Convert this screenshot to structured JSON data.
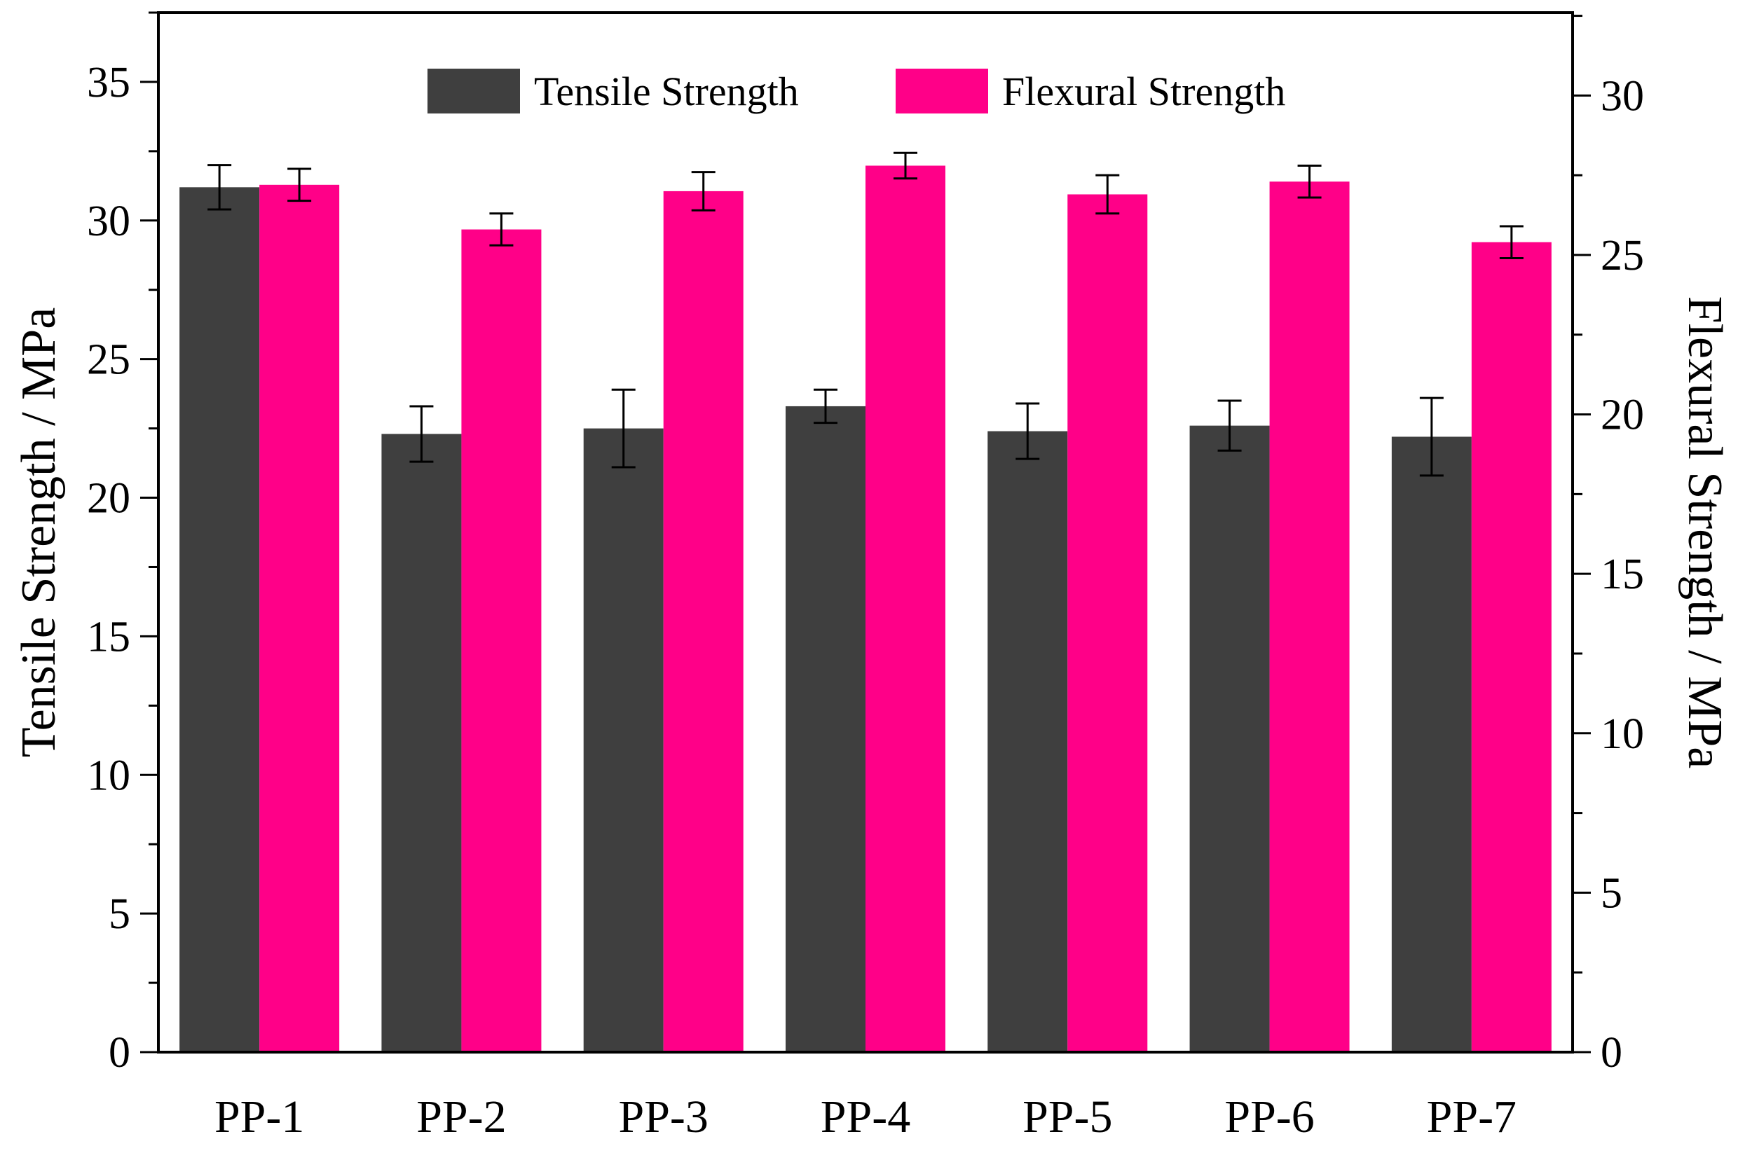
{
  "chart_data": {
    "type": "bar",
    "categories": [
      "PP-1",
      "PP-2",
      "PP-3",
      "PP-4",
      "PP-5",
      "PP-6",
      "PP-7"
    ],
    "series": [
      {
        "name": "Tensile Strength",
        "axis": "left",
        "color": "#3f3f3f",
        "values": [
          31.2,
          22.3,
          22.5,
          23.3,
          22.4,
          22.6,
          22.2
        ],
        "errors": [
          0.8,
          1.0,
          1.4,
          0.6,
          1.0,
          0.9,
          1.4
        ]
      },
      {
        "name": "Flexural Strength",
        "axis": "right",
        "color": "#ff0088",
        "values": [
          27.2,
          25.8,
          27.0,
          27.8,
          26.9,
          27.3,
          25.4
        ],
        "errors": [
          0.5,
          0.5,
          0.6,
          0.4,
          0.6,
          0.5,
          0.5
        ]
      }
    ],
    "y_left": {
      "label": "Tensile Strength / MPa",
      "lim": [
        0,
        37.5
      ],
      "ticks": [
        0,
        5,
        10,
        15,
        20,
        25,
        30,
        35
      ],
      "minor_step": 2.5
    },
    "y_right": {
      "label": "Flexural Strength / MPa",
      "lim": [
        0,
        32.6
      ],
      "ticks": [
        0,
        5,
        10,
        15,
        20,
        25,
        30
      ],
      "minor_step": 2.5
    },
    "legend": {
      "position": "top-center",
      "orientation": "horizontal"
    },
    "grid": false
  }
}
